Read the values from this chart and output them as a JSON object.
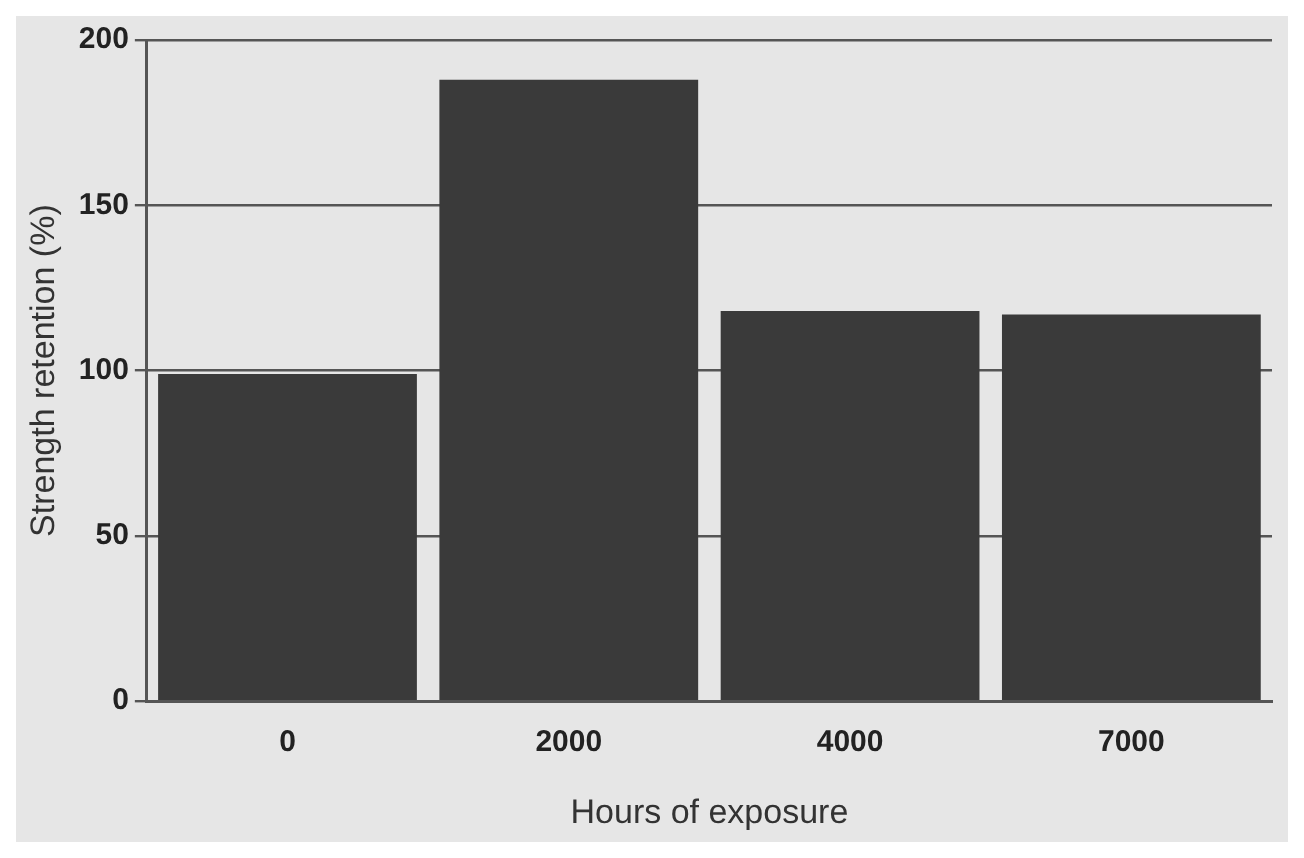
{
  "chart_data": {
    "type": "bar",
    "xlabel": "Hours of exposure",
    "ylabel": "Strength retention (%)",
    "categories": [
      "0",
      "2000",
      "4000",
      "7000"
    ],
    "values": [
      99,
      188,
      118,
      117
    ],
    "color": "#3a3a3a",
    "ylim": [
      0,
      200
    ],
    "yticks": [
      0,
      50,
      100,
      150,
      200
    ],
    "grid": "y"
  }
}
